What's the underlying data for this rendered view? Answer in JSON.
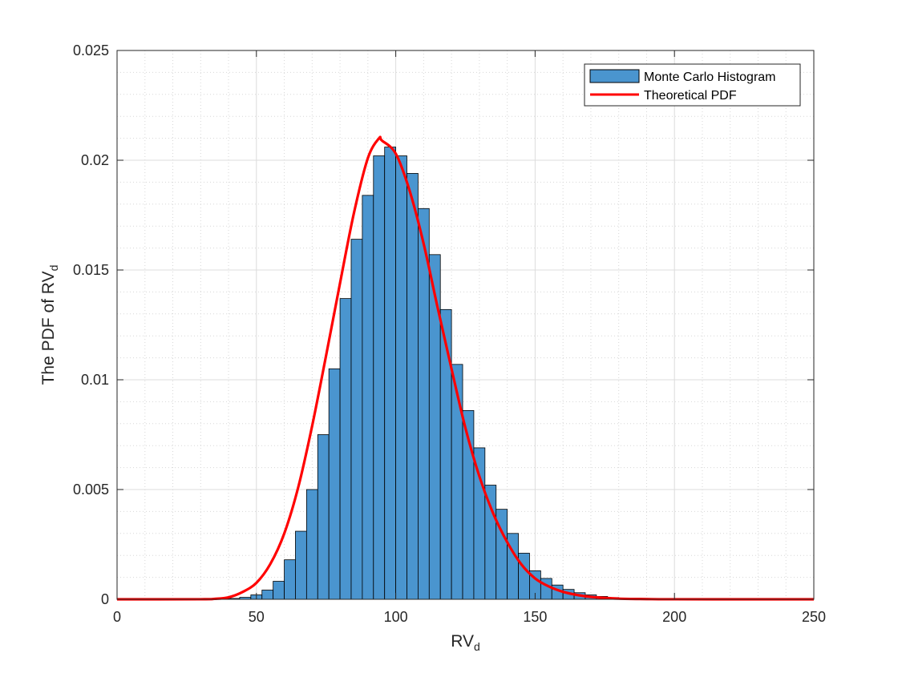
{
  "chart_data": {
    "type": "bar",
    "title": "",
    "xlabel": {
      "main": "RV",
      "sub": "d"
    },
    "ylabel": {
      "main": "The PDF of RV",
      "sub": "d"
    },
    "xlim": [
      0,
      250
    ],
    "ylim": [
      0,
      0.025
    ],
    "xticks": [
      0,
      50,
      100,
      150,
      200,
      250
    ],
    "xtick_labels": [
      "0",
      "50",
      "100",
      "150",
      "200",
      "250"
    ],
    "yticks": [
      0,
      0.005,
      0.01,
      0.015,
      0.02,
      0.025
    ],
    "ytick_labels": [
      "0",
      "0.005",
      "0.01",
      "0.015",
      "0.02",
      "0.025"
    ],
    "grid": true,
    "minor_grid": true,
    "legend_position": "top-right",
    "histogram": {
      "name": "Monte Carlo Histogram",
      "color": "#4a95cf",
      "edge_color": "#000000",
      "bin_width": 4,
      "bins": [
        [
          28,
          5e-06
        ],
        [
          32,
          1e-05
        ],
        [
          36,
          2e-05
        ],
        [
          40,
          4e-05
        ],
        [
          44,
          9e-05
        ],
        [
          48,
          0.0002
        ],
        [
          52,
          0.00042
        ],
        [
          56,
          0.00082
        ],
        [
          60,
          0.0018
        ],
        [
          64,
          0.0031
        ],
        [
          68,
          0.005
        ],
        [
          72,
          0.0075
        ],
        [
          76,
          0.0105
        ],
        [
          80,
          0.0137
        ],
        [
          84,
          0.0164
        ],
        [
          88,
          0.0184
        ],
        [
          92,
          0.0202
        ],
        [
          96,
          0.0206
        ],
        [
          100,
          0.0202
        ],
        [
          104,
          0.0194
        ],
        [
          108,
          0.0178
        ],
        [
          112,
          0.0157
        ],
        [
          116,
          0.0132
        ],
        [
          120,
          0.0107
        ],
        [
          124,
          0.0086
        ],
        [
          128,
          0.0069
        ],
        [
          132,
          0.0052
        ],
        [
          136,
          0.0041
        ],
        [
          140,
          0.003
        ],
        [
          144,
          0.0021
        ],
        [
          148,
          0.0013
        ],
        [
          152,
          0.00095
        ],
        [
          156,
          0.00065
        ],
        [
          160,
          0.00045
        ],
        [
          164,
          0.0003
        ],
        [
          168,
          0.0002
        ],
        [
          172,
          0.00013
        ],
        [
          176,
          8e-05
        ],
        [
          180,
          5e-05
        ],
        [
          184,
          3e-05
        ]
      ]
    },
    "pdf_curve": {
      "name": "Theoretical PDF",
      "color": "#ff0000",
      "points": [
        [
          0,
          0
        ],
        [
          30,
          3e-06
        ],
        [
          35,
          2e-05
        ],
        [
          40,
          9e-05
        ],
        [
          45,
          0.00033
        ],
        [
          50,
          0.00075
        ],
        [
          55,
          0.00161
        ],
        [
          60,
          0.003
        ],
        [
          65,
          0.0051
        ],
        [
          70,
          0.0079
        ],
        [
          75,
          0.0111
        ],
        [
          80,
          0.0144
        ],
        [
          85,
          0.0176
        ],
        [
          90,
          0.0201
        ],
        [
          94,
          0.021
        ],
        [
          95,
          0.0209
        ],
        [
          100,
          0.0203
        ],
        [
          105,
          0.0186
        ],
        [
          110,
          0.0162
        ],
        [
          115,
          0.0133
        ],
        [
          120,
          0.0105
        ],
        [
          125,
          0.0078
        ],
        [
          130,
          0.0056
        ],
        [
          135,
          0.0039
        ],
        [
          140,
          0.0026
        ],
        [
          145,
          0.0016
        ],
        [
          150,
          0.00095
        ],
        [
          155,
          0.00058
        ],
        [
          160,
          0.00034
        ],
        [
          165,
          0.0002
        ],
        [
          170,
          0.00011
        ],
        [
          180,
          3e-05
        ],
        [
          190,
          1e-05
        ],
        [
          200,
          2e-06
        ],
        [
          250,
          0
        ]
      ]
    }
  }
}
